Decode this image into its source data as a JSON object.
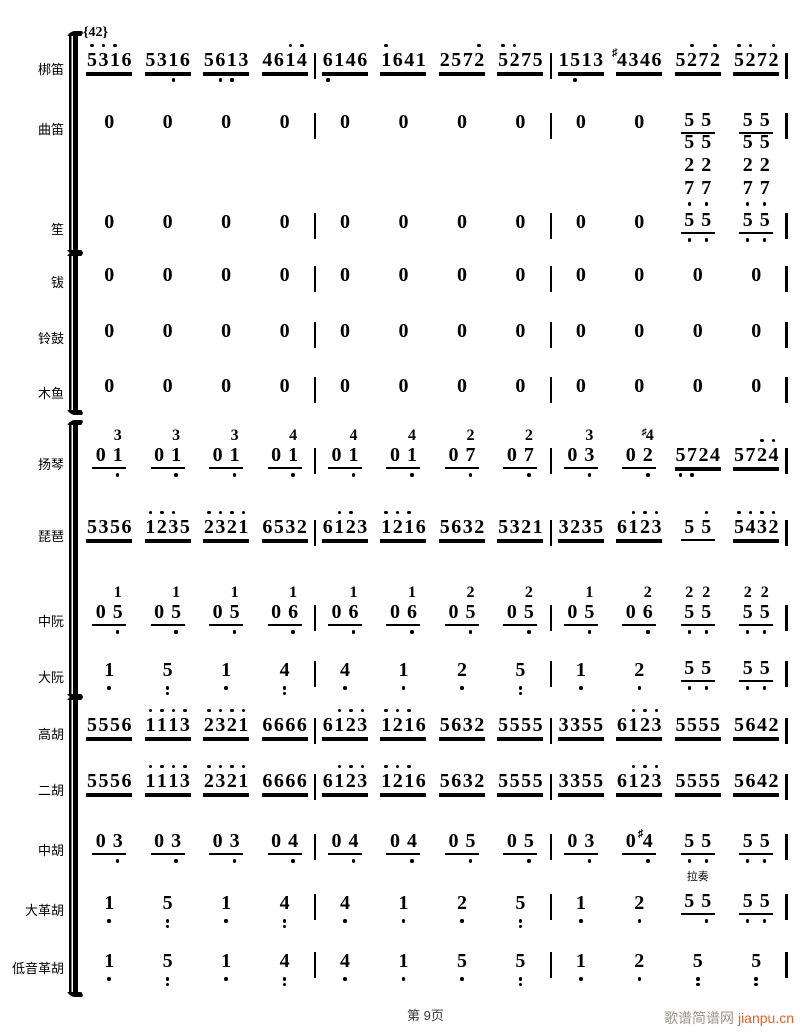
{
  "page": {
    "rehearsal_mark": "{42}",
    "page_label": "第 9页",
    "watermark_text": "歌谱简谱网",
    "watermark_link": "jianpu.cn",
    "colors": {
      "ink": "#000000",
      "watermark_gray": "#9a948a",
      "watermark_orange": "#e2612c"
    }
  },
  "instruments": [
    {
      "name": "梆笛",
      "id": "bangdi",
      "beats": [
        {
          "n": "5' 3' 1' 6",
          "u": 2
        },
        {
          "n": "5 3 1, 6",
          "u": 2
        },
        {
          "n": "5 6, 1, 3",
          "u": 2
        },
        {
          "n": "4 6 1' 4'",
          "u": 2
        },
        {
          "n": "6, 1 4 6",
          "u": 2
        },
        {
          "n": "1' 6 4 1",
          "u": 2
        },
        {
          "n": "2 5 7 2'",
          "u": 2
        },
        {
          "n": "5' 2' 7 5",
          "u": 2
        },
        {
          "n": "1 5, 1 3",
          "u": 2
        },
        {
          "n": "#4 3 4 6",
          "u": 2
        },
        {
          "n": "5 2' 7 2'",
          "u": 2
        },
        {
          "n": "5' 2' 7 2'",
          "u": 2
        }
      ]
    },
    {
      "name": "曲笛",
      "id": "qudi",
      "beats": [
        {
          "n": "0"
        },
        {
          "n": "0"
        },
        {
          "n": "0"
        },
        {
          "n": "0"
        },
        {
          "n": "0"
        },
        {
          "n": "0"
        },
        {
          "n": "0"
        },
        {
          "n": "0"
        },
        {
          "n": "0"
        },
        {
          "n": "0"
        },
        {
          "n": "5 5",
          "u": 1
        },
        {
          "n": "5 5",
          "u": 1
        }
      ]
    },
    {
      "name": "笙",
      "id": "sheng",
      "beats": [
        {
          "n": "0"
        },
        {
          "n": "0"
        },
        {
          "n": "0"
        },
        {
          "n": "0"
        },
        {
          "n": "0"
        },
        {
          "n": "0"
        },
        {
          "n": "0"
        },
        {
          "n": "0"
        },
        {
          "n": "0"
        },
        {
          "n": "0"
        },
        {
          "rows": [
            "5 5",
            "2 2",
            "7, 7,",
            "5, 5,"
          ],
          "u": 1
        },
        {
          "rows": [
            "5 5",
            "2 2",
            "7, 7,",
            "5, 5,"
          ],
          "u": 1
        }
      ]
    },
    {
      "name": "钹",
      "id": "bo",
      "beats": [
        {
          "n": "0"
        },
        {
          "n": "0"
        },
        {
          "n": "0"
        },
        {
          "n": "0"
        },
        {
          "n": "0"
        },
        {
          "n": "0"
        },
        {
          "n": "0"
        },
        {
          "n": "0"
        },
        {
          "n": "0"
        },
        {
          "n": "0"
        },
        {
          "n": "0"
        },
        {
          "n": "0"
        }
      ]
    },
    {
      "name": "铃鼓",
      "id": "linggu",
      "beats": [
        {
          "n": "0"
        },
        {
          "n": "0"
        },
        {
          "n": "0"
        },
        {
          "n": "0"
        },
        {
          "n": "0"
        },
        {
          "n": "0"
        },
        {
          "n": "0"
        },
        {
          "n": "0"
        },
        {
          "n": "0"
        },
        {
          "n": "0"
        },
        {
          "n": "0"
        },
        {
          "n": "0"
        }
      ]
    },
    {
      "name": "木鱼",
      "id": "muyu",
      "beats": [
        {
          "n": "0"
        },
        {
          "n": "0"
        },
        {
          "n": "0"
        },
        {
          "n": "0"
        },
        {
          "n": "0"
        },
        {
          "n": "0"
        },
        {
          "n": "0"
        },
        {
          "n": "0"
        },
        {
          "n": "0"
        },
        {
          "n": "0"
        },
        {
          "n": "0"
        },
        {
          "n": "0"
        }
      ]
    },
    {
      "name": "扬琴",
      "id": "yangqin",
      "beats": [
        {
          "n": "0 1,",
          "t": [
            "",
            "3"
          ],
          "u": 1
        },
        {
          "n": "0 1,",
          "t": [
            "",
            "3"
          ],
          "u": 1
        },
        {
          "n": "0 1,",
          "t": [
            "",
            "3"
          ],
          "u": 1
        },
        {
          "n": "0 1,",
          "t": [
            "",
            "4"
          ],
          "u": 1
        },
        {
          "n": "0 1,",
          "t": [
            "",
            "4"
          ],
          "u": 1
        },
        {
          "n": "0 1,",
          "t": [
            "",
            "4"
          ],
          "u": 1
        },
        {
          "n": "0 7,",
          "t": [
            "",
            "2"
          ],
          "u": 1
        },
        {
          "n": "0 7,",
          "t": [
            "",
            "2"
          ],
          "u": 1
        },
        {
          "n": "0 3,",
          "t": [
            "",
            "3"
          ],
          "u": 1
        },
        {
          "n": "0 2,",
          "t": [
            "",
            "#4"
          ],
          "u": 1
        },
        {
          "n": "5, 7, 2 4",
          "u": 2
        },
        {
          "n": "5 7 2' 4'",
          "u": 2
        }
      ]
    },
    {
      "name": "琵琶",
      "id": "pipa",
      "beats": [
        {
          "n": "5 3 5 6",
          "u": 2
        },
        {
          "n": "1' 2' 3' 5",
          "u": 2
        },
        {
          "n": "2' 3' 2' 1'",
          "u": 2
        },
        {
          "n": "6 5 3 2",
          "u": 2
        },
        {
          "n": "6 1' 2' 3",
          "u": 2
        },
        {
          "n": "1' 2' 1' 6",
          "u": 2
        },
        {
          "n": "5 6 3 2",
          "u": 2
        },
        {
          "n": "5 3 2 1",
          "u": 2
        },
        {
          "n": "3 2 3 5",
          "u": 2
        },
        {
          "n": "6 1' 2' 3'",
          "u": 2
        },
        {
          "n": "5 5'",
          "u": 1
        },
        {
          "n": "5' 4' 3' 2'",
          "u": 2
        }
      ]
    },
    {
      "name": "中阮",
      "id": "zhongruan",
      "beats": [
        {
          "n": "0 5,",
          "t": [
            "",
            "1"
          ],
          "u": 1
        },
        {
          "n": "0 5,",
          "t": [
            "",
            "1"
          ],
          "u": 1
        },
        {
          "n": "0 5,",
          "t": [
            "",
            "1"
          ],
          "u": 1
        },
        {
          "n": "0 6,",
          "t": [
            "",
            "1"
          ],
          "u": 1
        },
        {
          "n": "0 6,",
          "t": [
            "",
            "1"
          ],
          "u": 1
        },
        {
          "n": "0 6,",
          "t": [
            "",
            "1"
          ],
          "u": 1
        },
        {
          "n": "0 5,",
          "t": [
            "",
            "2"
          ],
          "u": 1
        },
        {
          "n": "0 5,",
          "t": [
            "",
            "2"
          ],
          "u": 1
        },
        {
          "n": "0 5,",
          "t": [
            "",
            "1"
          ],
          "u": 1
        },
        {
          "n": "0 6,",
          "t": [
            "",
            "2"
          ],
          "u": 1
        },
        {
          "n": "5, 5,",
          "t": [
            "2",
            "2"
          ],
          "u": 1
        },
        {
          "n": "5, 5,",
          "t": [
            "2",
            "2"
          ],
          "u": 1
        }
      ]
    },
    {
      "name": "大阮",
      "id": "daruan",
      "beats": [
        {
          "n": "1,"
        },
        {
          "n": "5,,"
        },
        {
          "n": "1,"
        },
        {
          "n": "4,,"
        },
        {
          "n": "4,"
        },
        {
          "n": "1,"
        },
        {
          "n": "2,"
        },
        {
          "n": "5,,"
        },
        {
          "n": "1,"
        },
        {
          "n": "2,"
        },
        {
          "n": "5, 5,",
          "u": 1
        },
        {
          "n": "5, 5,",
          "u": 1
        }
      ]
    },
    {
      "name": "高胡",
      "id": "gaohu",
      "beats": [
        {
          "n": "5 5 5 6",
          "u": 2
        },
        {
          "n": "1' 1' 1' 3'",
          "u": 2
        },
        {
          "n": "2' 3' 2' 1'",
          "u": 2
        },
        {
          "n": "6 6 6 6",
          "u": 2
        },
        {
          "n": "6 1' 2' 3'",
          "u": 2
        },
        {
          "n": "1' 2' 1' 6",
          "u": 2
        },
        {
          "n": "5 6 3 2",
          "u": 2
        },
        {
          "n": "5 5 5 5",
          "u": 2
        },
        {
          "n": "3 3 5 5",
          "u": 2
        },
        {
          "n": "6 1' 2' 3'",
          "u": 2
        },
        {
          "n": "5 5 5 5",
          "u": 2
        },
        {
          "n": "5 6 4 2",
          "u": 2
        }
      ]
    },
    {
      "name": "二胡",
      "id": "erhu",
      "beats": [
        {
          "n": "5 5 5 6",
          "u": 2
        },
        {
          "n": "1' 1' 1' 3'",
          "u": 2
        },
        {
          "n": "2' 3' 2' 1'",
          "u": 2
        },
        {
          "n": "6 6 6 6",
          "u": 2
        },
        {
          "n": "6 1' 2' 3'",
          "u": 2
        },
        {
          "n": "1' 2' 1' 6",
          "u": 2
        },
        {
          "n": "5 6 3 2",
          "u": 2
        },
        {
          "n": "5 5 5 5",
          "u": 2
        },
        {
          "n": "3 3 5 5",
          "u": 2
        },
        {
          "n": "6 1' 2' 3'",
          "u": 2
        },
        {
          "n": "5 5 5 5",
          "u": 2
        },
        {
          "n": "5 6 4 2",
          "u": 2
        }
      ]
    },
    {
      "name": "中胡",
      "id": "zhonghu",
      "beats": [
        {
          "n": "0 3,",
          "u": 1
        },
        {
          "n": "0 3,",
          "u": 1
        },
        {
          "n": "0 3,",
          "u": 1
        },
        {
          "n": "0 4,",
          "u": 1
        },
        {
          "n": "0 4,",
          "u": 1
        },
        {
          "n": "0 4,",
          "u": 1
        },
        {
          "n": "0 5,",
          "u": 1
        },
        {
          "n": "0 5,",
          "u": 1
        },
        {
          "n": "0 3,",
          "u": 1
        },
        {
          "n": "0 #4,",
          "u": 1
        },
        {
          "n": "5, 5,",
          "u": 1
        },
        {
          "n": "5, 5,",
          "u": 1
        }
      ]
    },
    {
      "name": "大革胡",
      "id": "dagehu",
      "beats": [
        {
          "n": "1,"
        },
        {
          "n": "5,,"
        },
        {
          "n": "1,"
        },
        {
          "n": "4,,"
        },
        {
          "n": "4,"
        },
        {
          "n": "1,"
        },
        {
          "n": "2,"
        },
        {
          "n": "5,,"
        },
        {
          "n": "1,"
        },
        {
          "n": "2,"
        },
        {
          "n": "5 5,",
          "u": 1,
          "ann": "拉奏"
        },
        {
          "n": "5, 5,",
          "u": 1
        }
      ]
    },
    {
      "name": "低音革胡",
      "id": "diyingehu",
      "beats": [
        {
          "n": "1,"
        },
        {
          "n": "5,,"
        },
        {
          "n": "1,"
        },
        {
          "n": "4,,"
        },
        {
          "n": "4,"
        },
        {
          "n": "1,"
        },
        {
          "n": "5,"
        },
        {
          "n": "5,,"
        },
        {
          "n": "1,"
        },
        {
          "n": "2,"
        },
        {
          "n": "5,,"
        },
        {
          "n": "5,,"
        }
      ]
    }
  ]
}
